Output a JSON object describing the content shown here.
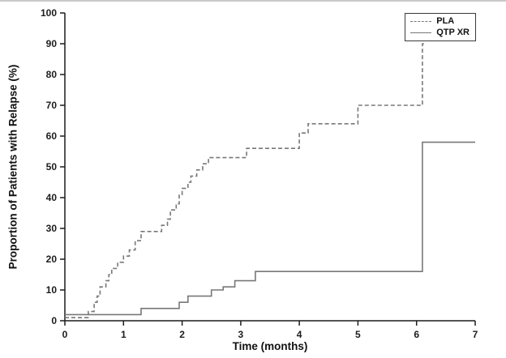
{
  "chart_data": {
    "type": "line",
    "subtype": "kaplan-meier-step",
    "title": "",
    "xlabel": "Time (months)",
    "ylabel": "Proportion of Patients with Relapse (%)",
    "xlim": [
      0,
      7
    ],
    "ylim": [
      0,
      100
    ],
    "xticks": [
      0,
      1,
      2,
      3,
      4,
      5,
      6,
      7
    ],
    "yticks": [
      0,
      10,
      20,
      30,
      40,
      50,
      60,
      70,
      80,
      90,
      100
    ],
    "grid": false,
    "legend_position": "top-right",
    "axis_color": "#1c1c1c",
    "series": [
      {
        "name": "PLA",
        "style": "dashed",
        "color": "#787878",
        "end_x": 6.15,
        "points": [
          [
            0,
            1
          ],
          [
            0.4,
            3
          ],
          [
            0.5,
            6
          ],
          [
            0.55,
            8
          ],
          [
            0.6,
            11
          ],
          [
            0.7,
            13
          ],
          [
            0.75,
            15
          ],
          [
            0.8,
            17
          ],
          [
            0.9,
            19
          ],
          [
            1.0,
            21
          ],
          [
            1.1,
            23
          ],
          [
            1.2,
            26
          ],
          [
            1.3,
            29
          ],
          [
            1.65,
            31
          ],
          [
            1.75,
            33
          ],
          [
            1.8,
            36
          ],
          [
            1.9,
            38
          ],
          [
            1.95,
            41
          ],
          [
            2.0,
            43
          ],
          [
            2.1,
            45
          ],
          [
            2.15,
            47
          ],
          [
            2.25,
            49
          ],
          [
            2.35,
            51
          ],
          [
            2.45,
            53
          ],
          [
            3.1,
            56
          ],
          [
            4.0,
            61
          ],
          [
            4.15,
            64
          ],
          [
            5.0,
            70
          ],
          [
            6.1,
            90
          ]
        ]
      },
      {
        "name": "QTP XR",
        "style": "solid",
        "color": "#787878",
        "end_x": 7,
        "points": [
          [
            0,
            2
          ],
          [
            1.3,
            4
          ],
          [
            1.95,
            6
          ],
          [
            2.1,
            8
          ],
          [
            2.5,
            10
          ],
          [
            2.7,
            11
          ],
          [
            2.9,
            13
          ],
          [
            3.25,
            16
          ],
          [
            6.1,
            58
          ]
        ]
      }
    ]
  }
}
